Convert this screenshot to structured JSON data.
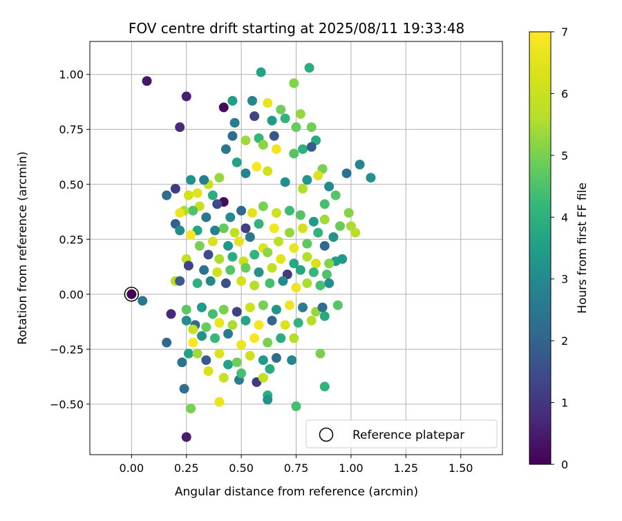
{
  "chart_data": {
    "type": "scatter",
    "title": "FOV centre drift starting at 2025/08/11 19:33:48",
    "xlabel": "Angular distance from reference (arcmin)",
    "ylabel": "Rotation from reference (arcmin)",
    "xlim": [
      -0.19,
      1.69
    ],
    "ylim": [
      -0.73,
      1.15
    ],
    "xticks": [
      0.0,
      0.25,
      0.5,
      0.75,
      1.0,
      1.25,
      1.5
    ],
    "xtick_labels": [
      "0.00",
      "0.25",
      "0.50",
      "0.75",
      "1.00",
      "1.25",
      "1.50"
    ],
    "yticks": [
      -0.5,
      -0.25,
      0.0,
      0.25,
      0.5,
      0.75,
      1.0
    ],
    "ytick_labels": [
      "−0.50",
      "−0.25",
      "0.00",
      "0.25",
      "0.50",
      "0.75",
      "1.00"
    ],
    "grid": true,
    "colormap": "viridis",
    "colorbar": {
      "label": "Hours from first FF file",
      "min": 0,
      "max": 7,
      "ticks": [
        0,
        1,
        2,
        3,
        4,
        5,
        6,
        7
      ],
      "tick_labels": [
        "0",
        "1",
        "2",
        "3",
        "4",
        "5",
        "6",
        "7"
      ]
    },
    "legend": {
      "position": "lower-right",
      "entries": [
        {
          "label": "Reference platepar",
          "marker": "open-circle"
        }
      ]
    },
    "reference_point": {
      "x": 0.0,
      "y": 0.0,
      "label": "Reference platepar"
    },
    "points": [
      [
        0.07,
        0.97,
        0.4
      ],
      [
        0.25,
        0.9,
        0.6
      ],
      [
        0.22,
        0.76,
        0.8
      ],
      [
        0.42,
        0.85,
        0.2
      ],
      [
        0.59,
        1.01,
        3.6
      ],
      [
        0.81,
        1.03,
        3.9
      ],
      [
        0.74,
        0.96,
        5.1
      ],
      [
        0.46,
        0.88,
        3.5
      ],
      [
        0.55,
        0.88,
        2.9
      ],
      [
        0.62,
        0.87,
        6.6
      ],
      [
        0.56,
        0.81,
        1.3
      ],
      [
        0.68,
        0.84,
        4.9
      ],
      [
        0.77,
        0.82,
        5.3
      ],
      [
        0.75,
        0.76,
        4.8
      ],
      [
        0.64,
        0.79,
        3.4
      ],
      [
        0.7,
        0.8,
        4.1
      ],
      [
        0.82,
        0.76,
        4.9
      ],
      [
        0.84,
        0.7,
        3.8
      ],
      [
        0.47,
        0.78,
        2.6
      ],
      [
        0.58,
        0.71,
        4.2
      ],
      [
        0.65,
        0.72,
        1.7
      ],
      [
        0.46,
        0.72,
        2.2
      ],
      [
        0.52,
        0.7,
        5.4
      ],
      [
        0.6,
        0.68,
        5.2
      ],
      [
        0.43,
        0.66,
        2.5
      ],
      [
        0.66,
        0.66,
        6.8
      ],
      [
        0.74,
        0.64,
        4.6
      ],
      [
        0.78,
        0.66,
        4.0
      ],
      [
        0.82,
        0.67,
        1.8
      ],
      [
        1.04,
        0.59,
        2.9
      ],
      [
        0.98,
        0.55,
        2.3
      ],
      [
        1.09,
        0.53,
        3.2
      ],
      [
        0.87,
        0.57,
        5.0
      ],
      [
        0.85,
        0.54,
        6.4
      ],
      [
        0.8,
        0.52,
        3.3
      ],
      [
        0.9,
        0.49,
        3.0
      ],
      [
        0.93,
        0.45,
        4.6
      ],
      [
        0.88,
        0.41,
        4.4
      ],
      [
        0.78,
        0.48,
        5.6
      ],
      [
        0.7,
        0.51,
        3.1
      ],
      [
        0.62,
        0.56,
        6.2
      ],
      [
        0.57,
        0.58,
        6.9
      ],
      [
        0.52,
        0.55,
        2.8
      ],
      [
        0.48,
        0.6,
        3.6
      ],
      [
        0.4,
        0.53,
        5.3
      ],
      [
        0.35,
        0.5,
        6.0
      ],
      [
        0.33,
        0.52,
        2.7
      ],
      [
        0.27,
        0.52,
        3.2
      ],
      [
        0.16,
        0.45,
        2.2
      ],
      [
        0.2,
        0.48,
        1.1
      ],
      [
        0.26,
        0.45,
        6.2
      ],
      [
        0.3,
        0.46,
        6.5
      ],
      [
        0.37,
        0.45,
        3.9
      ],
      [
        0.42,
        0.42,
        0.2
      ],
      [
        0.39,
        0.41,
        1.4
      ],
      [
        0.31,
        0.4,
        6.0
      ],
      [
        0.28,
        0.38,
        4.5
      ],
      [
        0.24,
        0.38,
        5.5
      ],
      [
        0.22,
        0.37,
        6.7
      ],
      [
        0.2,
        0.32,
        1.9
      ],
      [
        0.34,
        0.35,
        2.5
      ],
      [
        0.45,
        0.35,
        3.0
      ],
      [
        0.5,
        0.38,
        2.1
      ],
      [
        0.55,
        0.37,
        6.5
      ],
      [
        0.6,
        0.4,
        5.0
      ],
      [
        0.66,
        0.37,
        6.1
      ],
      [
        0.72,
        0.38,
        4.3
      ],
      [
        0.77,
        0.36,
        4.6
      ],
      [
        0.83,
        0.33,
        3.4
      ],
      [
        0.88,
        0.34,
        5.4
      ],
      [
        0.95,
        0.31,
        4.8
      ],
      [
        0.99,
        0.37,
        5.1
      ],
      [
        1.0,
        0.31,
        5.5
      ],
      [
        1.02,
        0.28,
        5.7
      ],
      [
        0.92,
        0.26,
        3.2
      ],
      [
        0.85,
        0.28,
        4.1
      ],
      [
        0.78,
        0.3,
        6.2
      ],
      [
        0.72,
        0.28,
        5.3
      ],
      [
        0.65,
        0.3,
        6.8
      ],
      [
        0.58,
        0.32,
        4.1
      ],
      [
        0.52,
        0.3,
        1.2
      ],
      [
        0.47,
        0.28,
        5.8
      ],
      [
        0.42,
        0.3,
        4.8
      ],
      [
        0.38,
        0.29,
        2.8
      ],
      [
        0.3,
        0.29,
        3.7
      ],
      [
        0.22,
        0.29,
        3.0
      ],
      [
        0.27,
        0.27,
        6.9
      ],
      [
        0.31,
        0.22,
        5.0
      ],
      [
        0.37,
        0.24,
        6.3
      ],
      [
        0.44,
        0.22,
        3.3
      ],
      [
        0.49,
        0.24,
        6.5
      ],
      [
        0.54,
        0.26,
        2.5
      ],
      [
        0.6,
        0.21,
        6.4
      ],
      [
        0.67,
        0.24,
        5.7
      ],
      [
        0.74,
        0.21,
        6.6
      ],
      [
        0.8,
        0.23,
        4.7
      ],
      [
        0.88,
        0.22,
        2.1
      ],
      [
        0.93,
        0.15,
        3.5
      ],
      [
        0.96,
        0.16,
        3.4
      ],
      [
        0.9,
        0.14,
        5.1
      ],
      [
        0.84,
        0.14,
        6.3
      ],
      [
        0.8,
        0.17,
        5.6
      ],
      [
        0.74,
        0.14,
        3.8
      ],
      [
        0.68,
        0.16,
        6.5
      ],
      [
        0.62,
        0.19,
        5.2
      ],
      [
        0.56,
        0.18,
        4.1
      ],
      [
        0.51,
        0.15,
        6.0
      ],
      [
        0.46,
        0.17,
        3.9
      ],
      [
        0.4,
        0.16,
        5.5
      ],
      [
        0.35,
        0.18,
        1.5
      ],
      [
        0.25,
        0.16,
        5.8
      ],
      [
        0.26,
        0.13,
        1.3
      ],
      [
        0.33,
        0.11,
        2.4
      ],
      [
        0.39,
        0.1,
        6.1
      ],
      [
        0.45,
        0.11,
        4.6
      ],
      [
        0.52,
        0.12,
        4.8
      ],
      [
        0.58,
        0.1,
        3.2
      ],
      [
        0.64,
        0.12,
        5.9
      ],
      [
        0.71,
        0.09,
        1.0
      ],
      [
        0.77,
        0.11,
        3.7
      ],
      [
        0.83,
        0.1,
        4.2
      ],
      [
        0.89,
        0.09,
        4.5
      ],
      [
        0.9,
        0.05,
        3.1
      ],
      [
        0.86,
        0.04,
        4.4
      ],
      [
        0.8,
        0.05,
        5.5
      ],
      [
        0.75,
        0.03,
        6.7
      ],
      [
        0.69,
        0.06,
        3.0
      ],
      [
        0.63,
        0.05,
        4.4
      ],
      [
        0.56,
        0.04,
        5.6
      ],
      [
        0.5,
        0.06,
        6.2
      ],
      [
        0.43,
        0.05,
        1.6
      ],
      [
        0.36,
        0.06,
        2.9
      ],
      [
        0.3,
        0.05,
        4.0
      ],
      [
        0.2,
        0.06,
        5.7
      ],
      [
        0.22,
        0.06,
        1.8
      ],
      [
        0.05,
        -0.03,
        2.5
      ],
      [
        0.18,
        -0.09,
        0.7
      ],
      [
        0.25,
        -0.07,
        4.7
      ],
      [
        0.25,
        -0.12,
        3.1
      ],
      [
        0.29,
        -0.14,
        2.2
      ],
      [
        0.32,
        -0.06,
        3.4
      ],
      [
        0.37,
        -0.09,
        4.4
      ],
      [
        0.42,
        -0.07,
        5.0
      ],
      [
        0.48,
        -0.08,
        1.2
      ],
      [
        0.54,
        -0.06,
        6.1
      ],
      [
        0.6,
        -0.05,
        5.0
      ],
      [
        0.66,
        -0.07,
        3.3
      ],
      [
        0.72,
        -0.05,
        6.7
      ],
      [
        0.78,
        -0.06,
        2.7
      ],
      [
        0.84,
        -0.08,
        5.3
      ],
      [
        0.87,
        -0.06,
        2.2
      ],
      [
        0.94,
        -0.05,
        4.6
      ],
      [
        0.88,
        -0.1,
        3.8
      ],
      [
        0.82,
        -0.12,
        5.6
      ],
      [
        0.76,
        -0.13,
        4.1
      ],
      [
        0.7,
        -0.14,
        6.4
      ],
      [
        0.64,
        -0.12,
        2.0
      ],
      [
        0.58,
        -0.14,
        6.8
      ],
      [
        0.52,
        -0.12,
        3.7
      ],
      [
        0.46,
        -0.14,
        5.5
      ],
      [
        0.4,
        -0.13,
        6.6
      ],
      [
        0.34,
        -0.15,
        4.8
      ],
      [
        0.28,
        -0.16,
        5.9
      ],
      [
        0.32,
        -0.19,
        3.2
      ],
      [
        0.38,
        -0.2,
        4.2
      ],
      [
        0.44,
        -0.18,
        2.6
      ],
      [
        0.5,
        -0.23,
        6.7
      ],
      [
        0.56,
        -0.2,
        6.9
      ],
      [
        0.62,
        -0.22,
        5.0
      ],
      [
        0.68,
        -0.2,
        3.9
      ],
      [
        0.74,
        -0.2,
        5.6
      ],
      [
        0.28,
        -0.22,
        6.9
      ],
      [
        0.16,
        -0.22,
        2.1
      ],
      [
        0.23,
        -0.31,
        2.4
      ],
      [
        0.26,
        -0.27,
        3.6
      ],
      [
        0.3,
        -0.27,
        5.4
      ],
      [
        0.34,
        -0.3,
        1.8
      ],
      [
        0.4,
        -0.27,
        6.4
      ],
      [
        0.44,
        -0.32,
        3.6
      ],
      [
        0.48,
        -0.31,
        4.9
      ],
      [
        0.54,
        -0.28,
        6.1
      ],
      [
        0.6,
        -0.3,
        3.4
      ],
      [
        0.66,
        -0.29,
        2.2
      ],
      [
        0.73,
        -0.3,
        2.9
      ],
      [
        0.86,
        -0.27,
        5.0
      ],
      [
        0.35,
        -0.35,
        6.3
      ],
      [
        0.42,
        -0.38,
        6.0
      ],
      [
        0.49,
        -0.39,
        2.7
      ],
      [
        0.5,
        -0.36,
        4.4
      ],
      [
        0.57,
        -0.4,
        1.1
      ],
      [
        0.6,
        -0.38,
        5.9
      ],
      [
        0.63,
        -0.34,
        3.8
      ],
      [
        0.88,
        -0.42,
        4.1
      ],
      [
        0.4,
        -0.49,
        6.6
      ],
      [
        0.62,
        -0.46,
        3.9
      ],
      [
        0.75,
        -0.51,
        4.4
      ],
      [
        0.27,
        -0.52,
        5.0
      ],
      [
        0.24,
        -0.43,
        2.3
      ],
      [
        0.25,
        -0.65,
        0.5
      ],
      [
        0.62,
        -0.48,
        3.2
      ]
    ]
  }
}
